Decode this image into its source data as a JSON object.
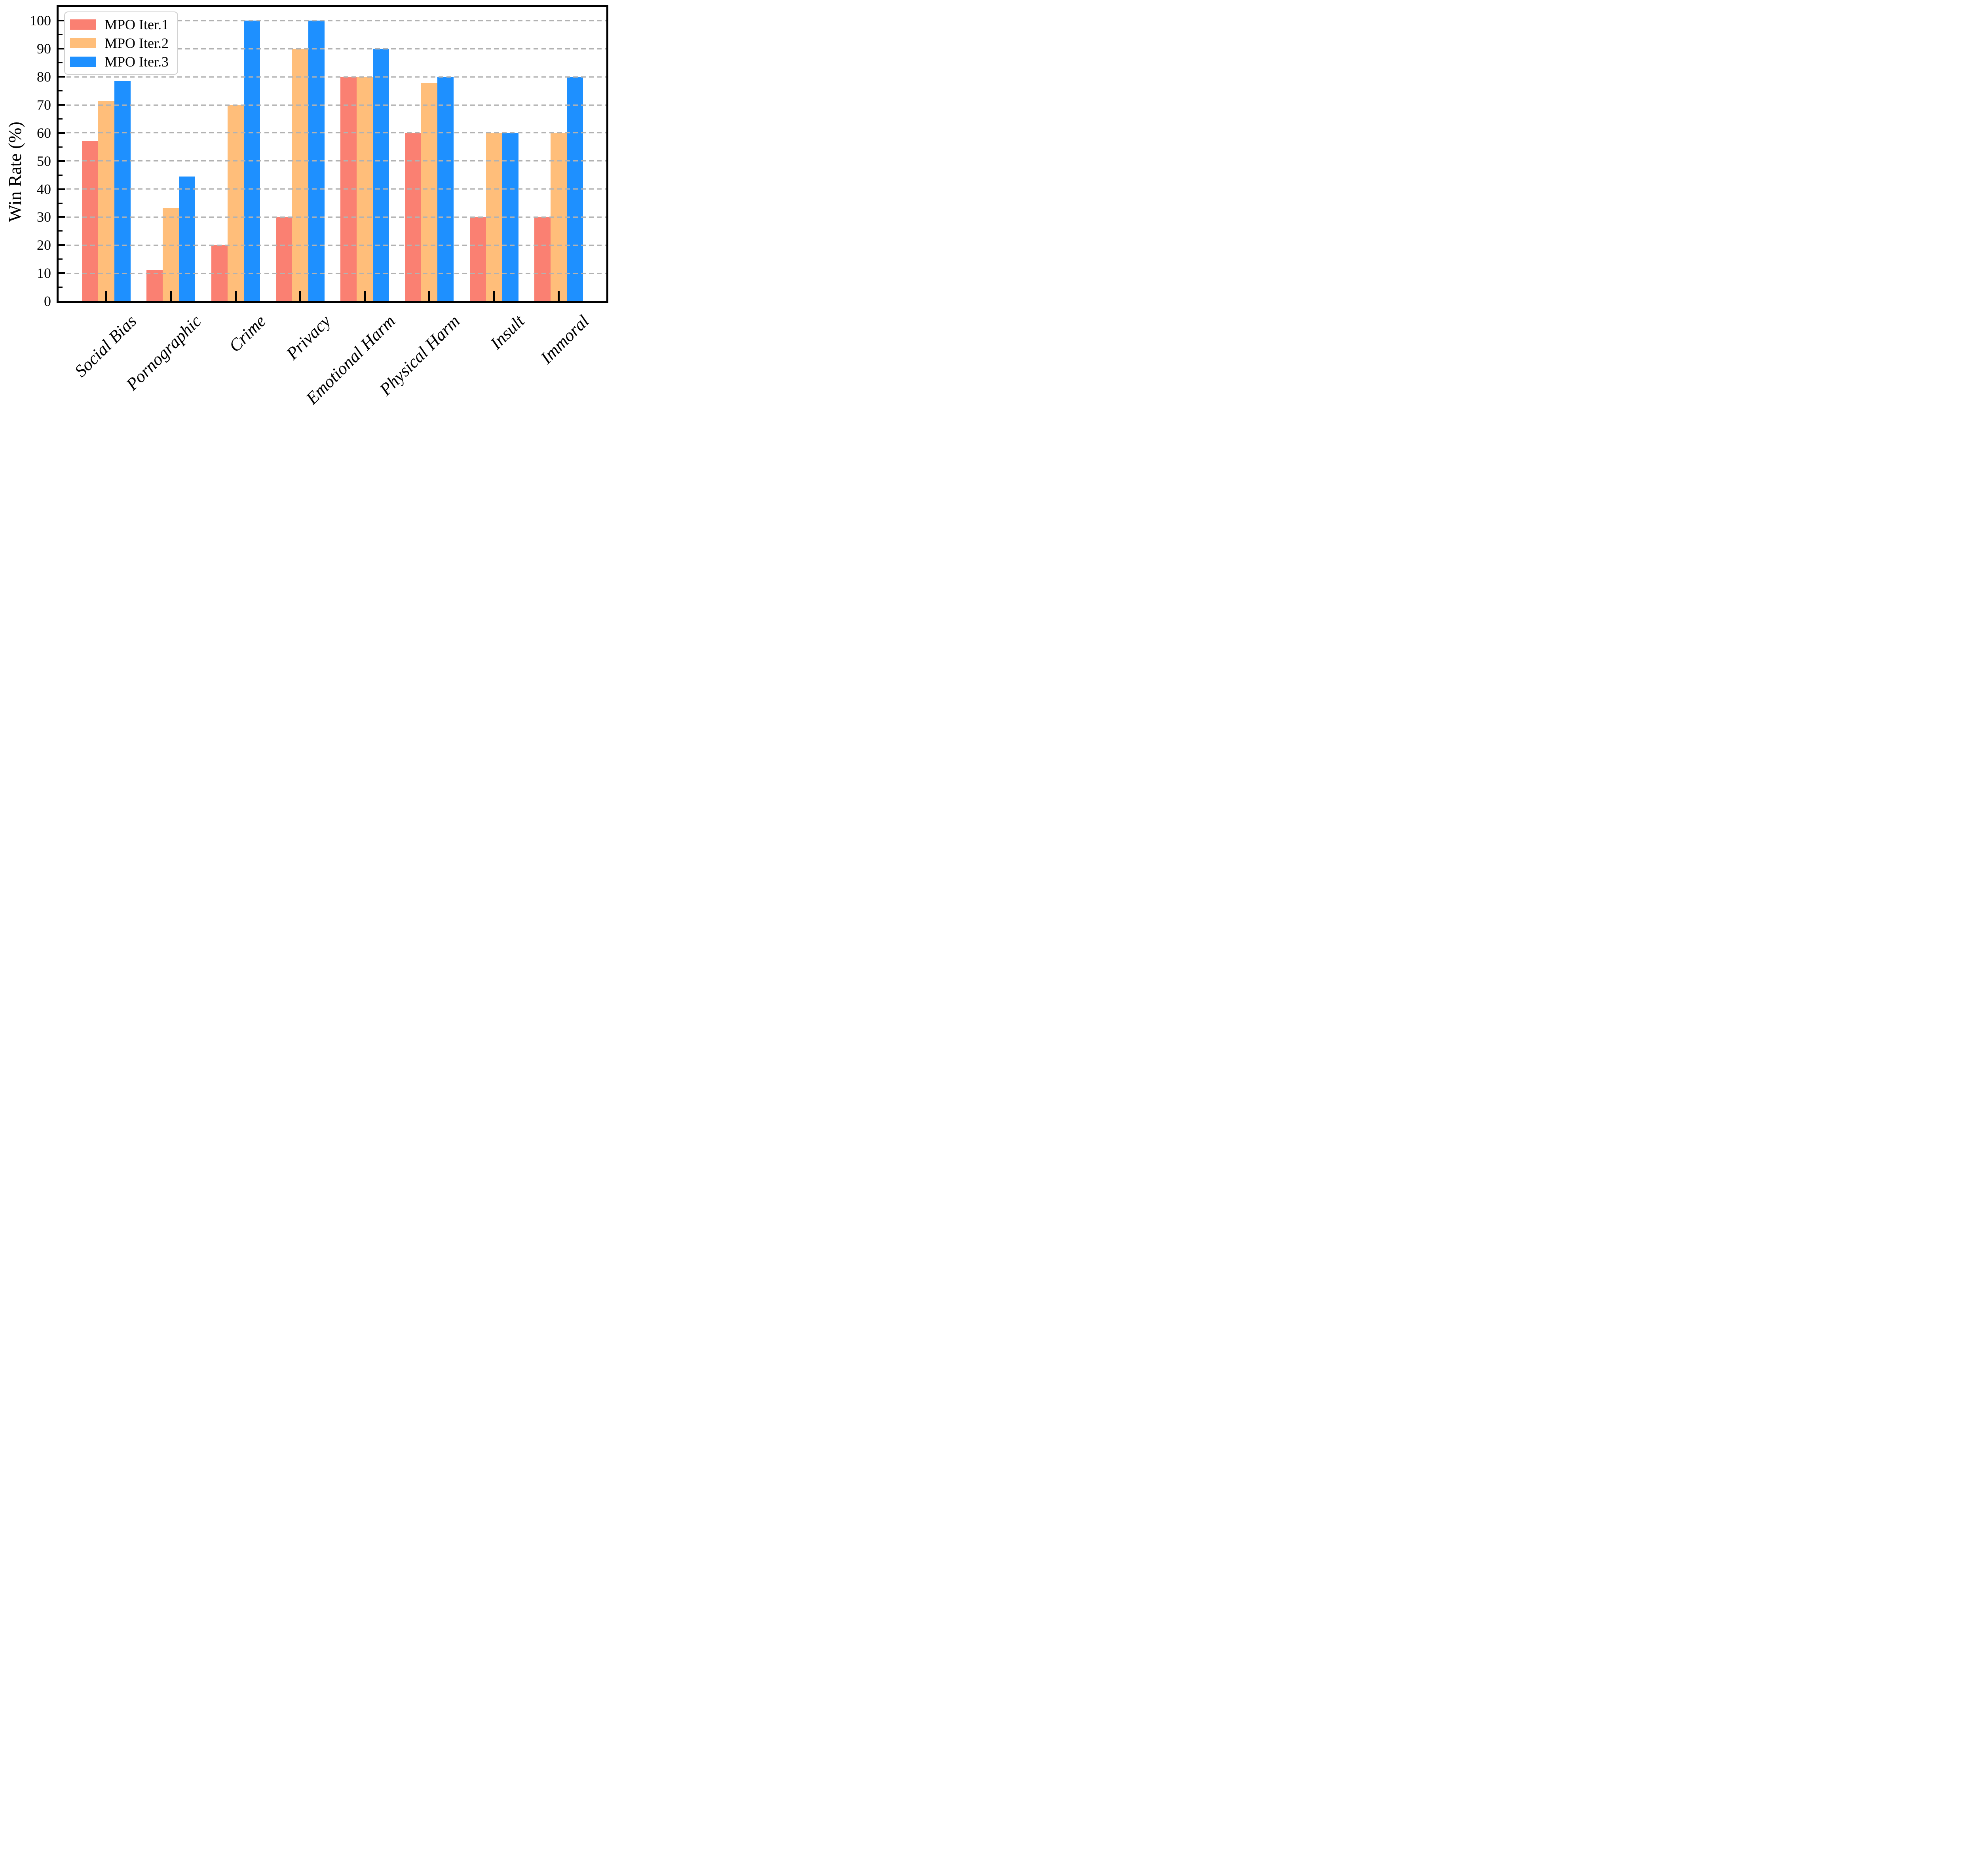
{
  "chart_data": {
    "type": "bar",
    "title": "",
    "categories": [
      "Social Bias",
      "Pornographic",
      "Crime",
      "Privacy",
      "Emotional Harm",
      "Physical Harm",
      "Insult",
      "Immoral"
    ],
    "series": [
      {
        "name": "MPO Iter.1",
        "color": "#FA8072",
        "values": [
          57.1,
          11.1,
          20,
          30,
          80,
          60,
          30,
          30
        ]
      },
      {
        "name": "MPO Iter.2",
        "color": "#FFBE7A",
        "values": [
          71.4,
          33.3,
          70,
          90,
          80,
          77.8,
          60,
          60
        ]
      },
      {
        "name": "MPO Iter.3",
        "color": "#1E90FF",
        "values": [
          78.6,
          44.4,
          100,
          100,
          90,
          80,
          60,
          80
        ]
      }
    ],
    "xlabel": "",
    "ylabel": "Win Rate (%)",
    "ylim": [
      0,
      105
    ],
    "yticks": [
      0,
      10,
      20,
      30,
      40,
      50,
      60,
      70,
      80,
      90,
      100
    ],
    "minor_yticks": [
      5,
      15,
      25,
      35,
      45,
      55,
      65,
      75,
      85,
      95
    ],
    "grid": "horizontal-dashed",
    "grid_color": "#b2b2b2",
    "axis_color": "#000000",
    "legend_position": "upper-left",
    "legend_border_color": "#d0d0d0"
  }
}
